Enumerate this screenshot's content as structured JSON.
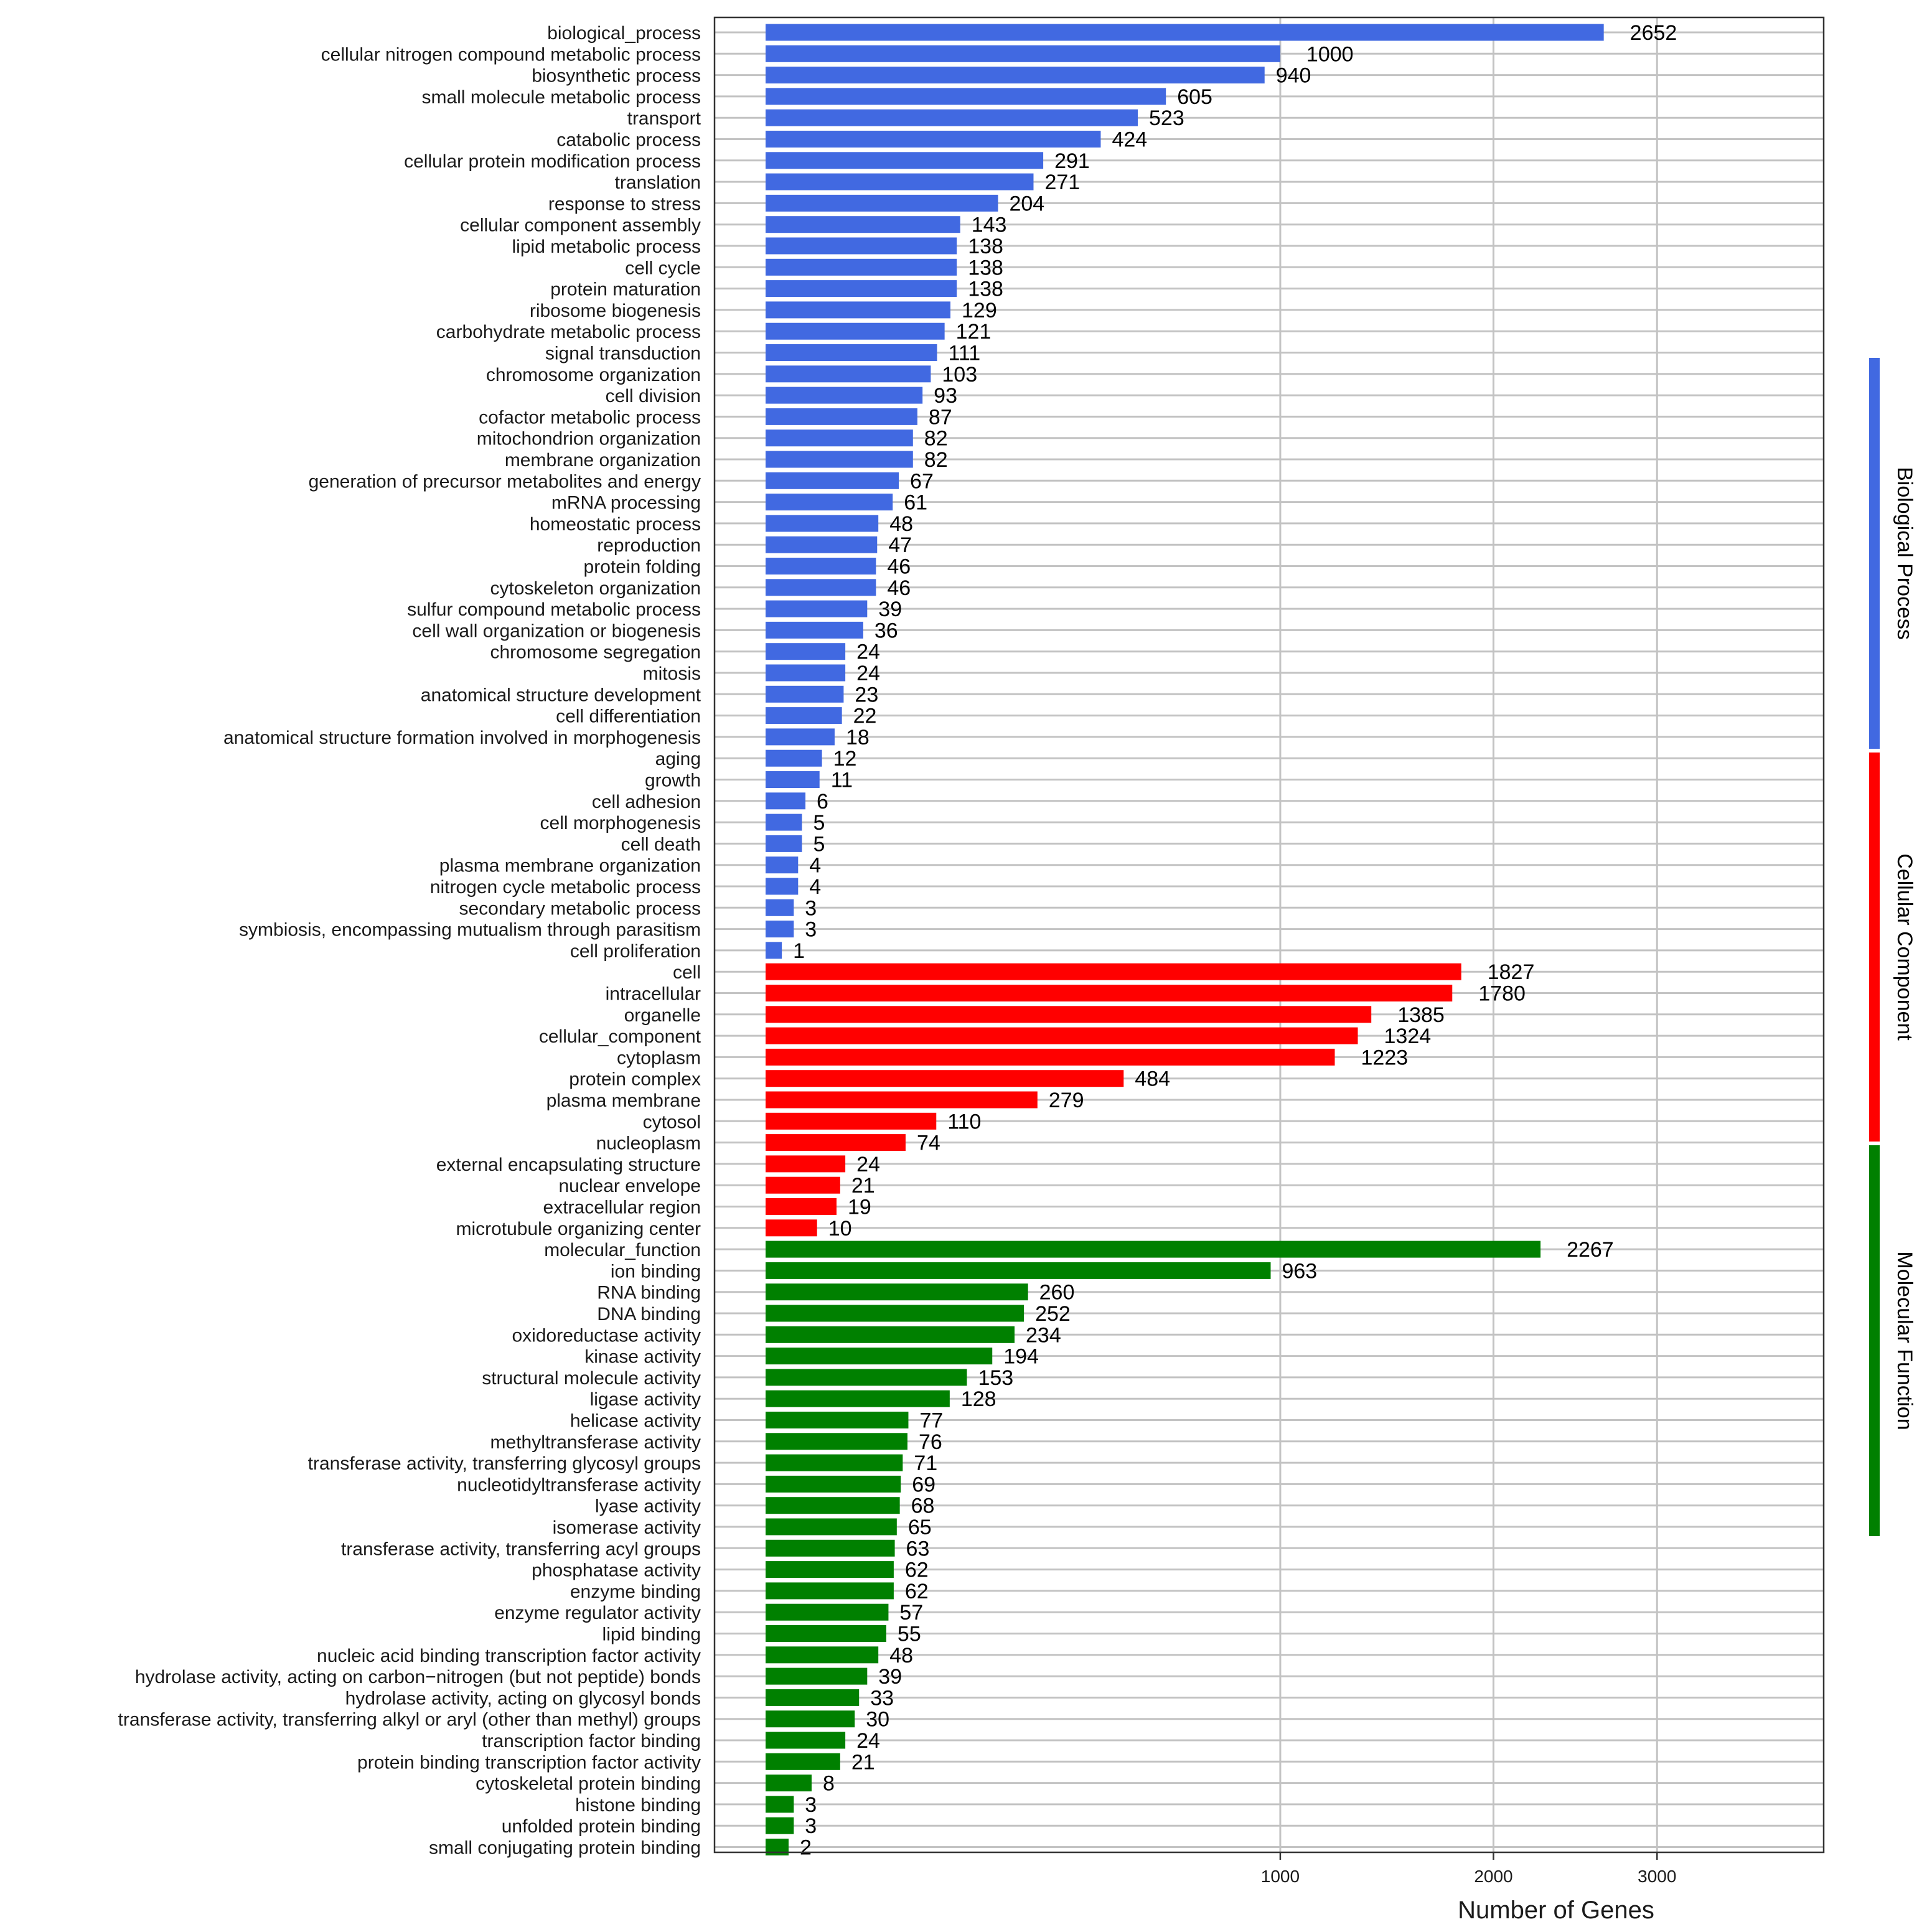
{
  "colors": {
    "biological_process": "#4169E1",
    "cellular_component": "#FF0000",
    "molecular_function": "#008000",
    "grid": "#c3c3c3",
    "panel_border": "#333333"
  },
  "chart_data": {
    "type": "bar",
    "orientation": "horizontal",
    "xlabel": "Number of Genes",
    "x_scale": "sqrt",
    "x_ticks": [
      1000,
      2000,
      3000
    ],
    "x_tick_labels": [
      "1000",
      "2000",
      "3000"
    ],
    "grid": true,
    "groups": [
      {
        "name": "Biological Process",
        "color_key": "biological_process",
        "categories": [
          "biological_process",
          "cellular nitrogen compound metabolic process",
          "biosynthetic process",
          "small molecule metabolic process",
          "transport",
          "catabolic process",
          "cellular protein modification process",
          "translation",
          "response to stress",
          "cellular component assembly",
          "lipid metabolic process",
          "cell cycle",
          "protein maturation",
          "ribosome biogenesis",
          "carbohydrate metabolic process",
          "signal transduction",
          "chromosome organization",
          "cell division",
          "cofactor metabolic process",
          "mitochondrion organization",
          "membrane organization",
          "generation of precursor metabolites and energy",
          "mRNA processing",
          "homeostatic process",
          "reproduction",
          "protein folding",
          "cytoskeleton organization",
          "sulfur compound metabolic process",
          "cell wall organization or biogenesis",
          "chromosome segregation",
          "mitosis",
          "anatomical structure development",
          "cell differentiation",
          "anatomical structure formation involved in morphogenesis",
          "aging",
          "growth",
          "cell adhesion",
          "cell morphogenesis",
          "cell death",
          "plasma membrane organization",
          "nitrogen cycle metabolic process",
          "secondary metabolic process",
          "symbiosis, encompassing mutualism through parasitism",
          "cell proliferation"
        ],
        "values": [
          2652,
          1000,
          940,
          605,
          523,
          424,
          291,
          271,
          204,
          143,
          138,
          138,
          138,
          129,
          121,
          111,
          103,
          93,
          87,
          82,
          82,
          67,
          61,
          48,
          47,
          46,
          46,
          39,
          36,
          24,
          24,
          23,
          22,
          18,
          12,
          11,
          6,
          5,
          5,
          4,
          4,
          3,
          3,
          1
        ]
      },
      {
        "name": "Cellular Component",
        "color_key": "cellular_component",
        "categories": [
          "cell",
          "intracellular",
          "organelle",
          "cellular_component",
          "cytoplasm",
          "protein complex",
          "plasma membrane",
          "cytosol",
          "nucleoplasm",
          "external encapsulating structure",
          "nuclear envelope",
          "extracellular region",
          "microtubule organizing center"
        ],
        "values": [
          1827,
          1780,
          1385,
          1324,
          1223,
          484,
          279,
          110,
          74,
          24,
          21,
          19,
          10
        ]
      },
      {
        "name": "Molecular Function",
        "color_key": "molecular_function",
        "categories": [
          "molecular_function",
          "ion binding",
          "RNA binding",
          "DNA binding",
          "oxidoreductase activity",
          "kinase activity",
          "structural molecule activity",
          "ligase activity",
          "helicase activity",
          "methyltransferase activity",
          "transferase activity, transferring glycosyl groups",
          "nucleotidyltransferase activity",
          "lyase activity",
          "isomerase activity",
          "transferase activity, transferring acyl groups",
          "phosphatase activity",
          "enzyme binding",
          "enzyme regulator activity",
          "lipid binding",
          "nucleic acid binding transcription factor activity",
          "hydrolase activity, acting on carbon−nitrogen (but not peptide) bonds",
          "hydrolase activity, acting on glycosyl bonds",
          "transferase activity, transferring alkyl or aryl (other than methyl) groups",
          "transcription factor binding",
          "protein binding transcription factor activity",
          "cytoskeletal protein binding",
          "histone binding",
          "unfolded protein binding",
          "small conjugating protein binding"
        ],
        "values": [
          2267,
          963,
          260,
          252,
          234,
          194,
          153,
          128,
          77,
          76,
          71,
          69,
          68,
          65,
          63,
          62,
          62,
          57,
          55,
          48,
          39,
          33,
          30,
          24,
          21,
          8,
          3,
          3,
          2
        ]
      }
    ]
  }
}
